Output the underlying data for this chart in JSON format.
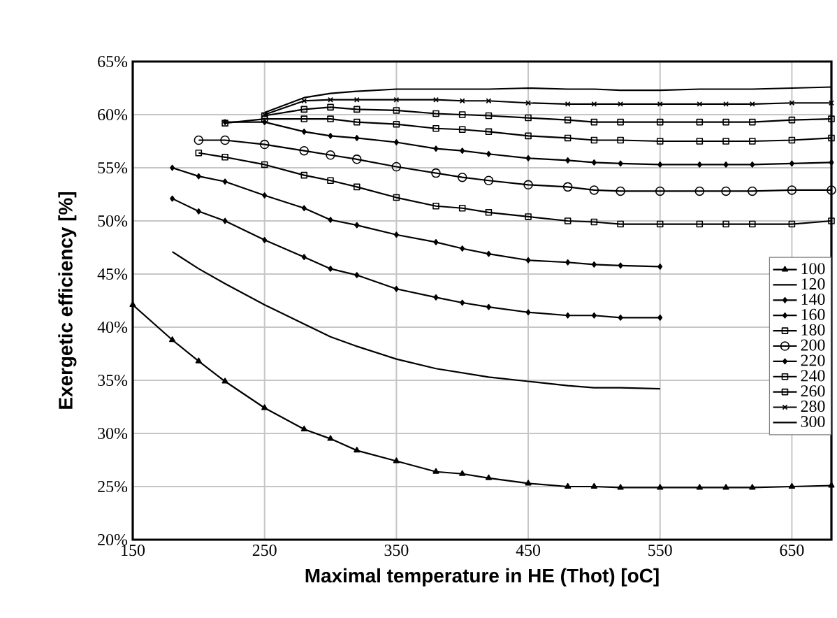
{
  "chart_data": {
    "type": "line",
    "xlabel": "Maximal temperature in HE (Thot) [oC]",
    "ylabel": "Exergetic efficiency [%]",
    "x": [
      150,
      180,
      200,
      220,
      250,
      280,
      300,
      320,
      350,
      380,
      400,
      420,
      450,
      480,
      500,
      520,
      550,
      580,
      600,
      620,
      650,
      680
    ],
    "xlim": [
      150,
      680
    ],
    "xticks": [
      150,
      250,
      350,
      450,
      550,
      650
    ],
    "ylim": [
      20,
      65
    ],
    "yticks": [
      {
        "value": 20,
        "label": "20%"
      },
      {
        "value": 25,
        "label": "25%"
      },
      {
        "value": 30,
        "label": "30%"
      },
      {
        "value": 35,
        "label": "35%"
      },
      {
        "value": 40,
        "label": "40%"
      },
      {
        "value": 45,
        "label": "45%"
      },
      {
        "value": 50,
        "label": "50%"
      },
      {
        "value": 55,
        "label": "55%"
      },
      {
        "value": 60,
        "label": "60%"
      },
      {
        "value": 65,
        "label": "65%"
      }
    ],
    "grid": true,
    "legend": "right",
    "series": [
      {
        "name": "100",
        "color": "#000000",
        "marker": "triangle",
        "values": [
          42.1,
          38.8,
          36.8,
          34.9,
          32.4,
          30.4,
          29.5,
          28.4,
          27.4,
          26.4,
          26.2,
          25.8,
          25.3,
          25.0,
          25.0,
          24.9,
          24.9,
          24.9,
          24.9,
          24.9,
          25.0,
          25.1
        ]
      },
      {
        "name": "120",
        "color": "#000000",
        "marker": "none",
        "values": [
          null,
          47.1,
          45.5,
          44.1,
          42.1,
          40.3,
          39.1,
          38.2,
          37.0,
          36.1,
          35.7,
          35.3,
          34.9,
          34.5,
          34.3,
          34.3,
          34.2,
          null,
          null,
          null,
          null,
          null
        ]
      },
      {
        "name": "140",
        "color": "#000000",
        "marker": "diamond",
        "values": [
          null,
          52.1,
          50.9,
          50.0,
          48.2,
          46.6,
          45.5,
          44.9,
          43.6,
          42.8,
          42.3,
          41.9,
          41.4,
          41.1,
          41.1,
          40.9,
          40.9,
          null,
          null,
          null,
          null,
          null
        ]
      },
      {
        "name": "160",
        "color": "#000000",
        "marker": "diamond",
        "values": [
          null,
          55.0,
          54.2,
          53.7,
          52.4,
          51.2,
          50.1,
          49.6,
          48.7,
          48.0,
          47.4,
          46.9,
          46.3,
          46.1,
          45.9,
          45.8,
          45.7,
          null,
          null,
          null,
          null,
          null
        ]
      },
      {
        "name": "180",
        "color": "#000000",
        "marker": "square",
        "values": [
          null,
          null,
          56.4,
          56.0,
          55.3,
          54.3,
          53.8,
          53.2,
          52.2,
          51.4,
          51.2,
          50.8,
          50.4,
          50.0,
          49.9,
          49.7,
          49.7,
          49.7,
          49.7,
          49.7,
          49.7,
          50.0
        ]
      },
      {
        "name": "200",
        "color": "#000000",
        "marker": "circle",
        "values": [
          null,
          null,
          57.6,
          57.6,
          57.2,
          56.6,
          56.2,
          55.8,
          55.1,
          54.5,
          54.1,
          53.8,
          53.4,
          53.2,
          52.9,
          52.8,
          52.8,
          52.8,
          52.8,
          52.8,
          52.9,
          52.9
        ]
      },
      {
        "name": "220",
        "color": "#000000",
        "marker": "diamond",
        "values": [
          null,
          null,
          null,
          59.3,
          59.3,
          58.4,
          58.0,
          57.8,
          57.4,
          56.8,
          56.6,
          56.3,
          55.9,
          55.7,
          55.5,
          55.4,
          55.3,
          55.3,
          55.3,
          55.3,
          55.4,
          55.5
        ]
      },
      {
        "name": "240",
        "color": "#000000",
        "marker": "square",
        "values": [
          null,
          null,
          null,
          59.2,
          59.6,
          59.6,
          59.6,
          59.3,
          59.1,
          58.7,
          58.6,
          58.4,
          58.0,
          57.8,
          57.6,
          57.6,
          57.5,
          57.5,
          57.5,
          57.5,
          57.6,
          57.8
        ]
      },
      {
        "name": "260",
        "color": "#000000",
        "marker": "square",
        "values": [
          null,
          null,
          null,
          null,
          59.9,
          60.5,
          60.7,
          60.5,
          60.4,
          60.1,
          60.0,
          59.9,
          59.7,
          59.5,
          59.3,
          59.3,
          59.3,
          59.3,
          59.3,
          59.3,
          59.5,
          59.6
        ]
      },
      {
        "name": "280",
        "color": "#000000",
        "marker": "cross",
        "values": [
          null,
          null,
          null,
          null,
          60.0,
          61.3,
          61.4,
          61.4,
          61.4,
          61.4,
          61.3,
          61.3,
          61.1,
          61.0,
          61.0,
          61.0,
          61.0,
          61.0,
          61.0,
          61.0,
          61.1,
          61.1
        ]
      },
      {
        "name": "300",
        "color": "#000000",
        "marker": "none",
        "values": [
          null,
          null,
          null,
          null,
          60.2,
          61.6,
          62.0,
          62.2,
          62.4,
          62.4,
          62.4,
          62.4,
          62.5,
          62.4,
          62.4,
          62.3,
          62.3,
          62.4,
          62.4,
          62.4,
          62.5,
          62.6
        ]
      }
    ]
  }
}
